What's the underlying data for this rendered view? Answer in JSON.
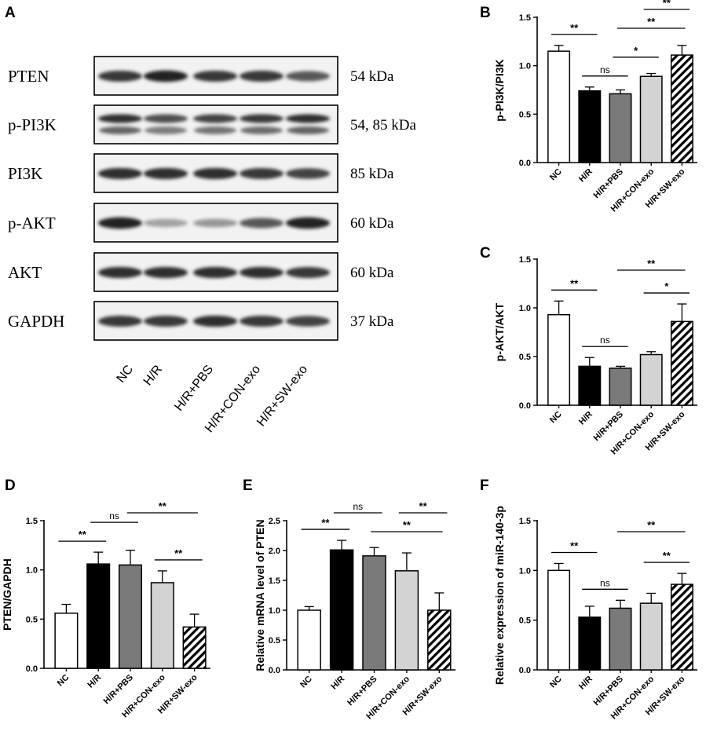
{
  "panels": {
    "A": "A",
    "B": "B",
    "C": "C",
    "D": "D",
    "E": "E",
    "F": "F"
  },
  "western_blot": {
    "rows": [
      {
        "protein": "PTEN",
        "kda": "54 kDa"
      },
      {
        "protein": "p-PI3K",
        "kda": "54, 85 kDa"
      },
      {
        "protein": "PI3K",
        "kda": "85 kDa"
      },
      {
        "protein": "p-AKT",
        "kda": "60 kDa"
      },
      {
        "protein": "AKT",
        "kda": "60 kDa"
      },
      {
        "protein": "GAPDH",
        "kda": "37 kDa"
      }
    ],
    "lanes": [
      "NC",
      "H/R",
      "H/R+PBS",
      "H/R+CON-exo",
      "H/R+SW-exo"
    ],
    "band_intensity": [
      [
        0.85,
        0.95,
        0.85,
        0.85,
        0.7
      ],
      [
        0.9,
        0.75,
        0.8,
        0.85,
        0.9
      ],
      [
        0.9,
        0.9,
        0.9,
        0.85,
        0.8
      ],
      [
        0.95,
        0.35,
        0.4,
        0.7,
        0.95
      ],
      [
        0.9,
        0.9,
        0.9,
        0.9,
        0.85
      ],
      [
        0.85,
        0.85,
        0.9,
        0.85,
        0.8
      ]
    ]
  },
  "chart_data": [
    {
      "panel": "B",
      "type": "bar",
      "categories": [
        "NC",
        "H/R",
        "H/R+PBS",
        "H/R+CON-exo",
        "H/R+SW-exo"
      ],
      "values": [
        1.15,
        0.74,
        0.71,
        0.89,
        1.11
      ],
      "errors": [
        0.06,
        0.04,
        0.04,
        0.03,
        0.1
      ],
      "ylabel": "p-PI3K/PI3K",
      "ylim": [
        0,
        1.5
      ],
      "yticks": [
        "0.0",
        "0.5",
        "1.0",
        "1.5"
      ],
      "significance": [
        {
          "from": 0,
          "to": 1,
          "label": "**"
        },
        {
          "from": 1,
          "to": 2,
          "label": "ns"
        },
        {
          "from": 2,
          "to": 3,
          "label": "*"
        },
        {
          "from": 2,
          "to": 4,
          "label": "**"
        },
        {
          "from": 3,
          "to": 4,
          "label": "**"
        }
      ]
    },
    {
      "panel": "C",
      "type": "bar",
      "categories": [
        "NC",
        "H/R",
        "H/R+PBS",
        "H/R+CON-exo",
        "H/R+SW-exo"
      ],
      "values": [
        0.93,
        0.4,
        0.38,
        0.52,
        0.86
      ],
      "errors": [
        0.14,
        0.09,
        0.02,
        0.03,
        0.18
      ],
      "ylabel": "p-AKT/AKT",
      "ylim": [
        0,
        1.5
      ],
      "yticks": [
        "0.0",
        "0.5",
        "1.0",
        "1.5"
      ],
      "significance": [
        {
          "from": 0,
          "to": 1,
          "label": "**"
        },
        {
          "from": 1,
          "to": 2,
          "label": "ns"
        },
        {
          "from": 2,
          "to": 4,
          "label": "**"
        },
        {
          "from": 3,
          "to": 4,
          "label": "*"
        }
      ]
    },
    {
      "panel": "D",
      "type": "bar",
      "categories": [
        "NC",
        "H/R",
        "H/R+PBS",
        "H/R+CON-exo",
        "H/R+SW-exo"
      ],
      "values": [
        0.56,
        1.06,
        1.05,
        0.87,
        0.42
      ],
      "errors": [
        0.09,
        0.12,
        0.15,
        0.12,
        0.13
      ],
      "ylabel": "PTEN/GAPDH",
      "ylim": [
        0,
        1.5
      ],
      "yticks": [
        "0.0",
        "0.5",
        "1.0",
        "1.5"
      ],
      "significance": [
        {
          "from": 0,
          "to": 1,
          "label": "**"
        },
        {
          "from": 1,
          "to": 2,
          "label": "ns"
        },
        {
          "from": 2,
          "to": 4,
          "label": "**"
        },
        {
          "from": 3,
          "to": 4,
          "label": "**"
        }
      ]
    },
    {
      "panel": "E",
      "type": "bar",
      "categories": [
        "NC",
        "H/R",
        "H/R+PBS",
        "H/R+CON-exo",
        "H/R+SW-exo"
      ],
      "values": [
        1.0,
        2.01,
        1.91,
        1.66,
        1.0
      ],
      "errors": [
        0.06,
        0.16,
        0.14,
        0.3,
        0.29
      ],
      "ylabel": "Relative mRNA level of PTEN",
      "ylim": [
        0,
        2.5
      ],
      "yticks": [
        "0.0",
        "0.5",
        "1.0",
        "1.5",
        "2.0",
        "2.5"
      ],
      "significance": [
        {
          "from": 0,
          "to": 1,
          "label": "**"
        },
        {
          "from": 1,
          "to": 2,
          "label": "ns"
        },
        {
          "from": 2,
          "to": 4,
          "label": "**"
        },
        {
          "from": 3,
          "to": 4,
          "label": "**"
        }
      ]
    },
    {
      "panel": "F",
      "type": "bar",
      "categories": [
        "NC",
        "H/R",
        "H/R+PBS",
        "H/R+CON-exo",
        "H/R+SW-exo"
      ],
      "values": [
        1.0,
        0.53,
        0.62,
        0.67,
        0.86
      ],
      "errors": [
        0.07,
        0.11,
        0.08,
        0.1,
        0.11
      ],
      "ylabel": "Relative expression of miR-140-3p",
      "ylim": [
        0,
        1.5
      ],
      "yticks": [
        "0.0",
        "0.5",
        "1.0",
        "1.5"
      ],
      "significance": [
        {
          "from": 0,
          "to": 1,
          "label": "**"
        },
        {
          "from": 1,
          "to": 2,
          "label": "ns"
        },
        {
          "from": 2,
          "to": 4,
          "label": "**"
        },
        {
          "from": 3,
          "to": 4,
          "label": "**"
        }
      ]
    }
  ]
}
